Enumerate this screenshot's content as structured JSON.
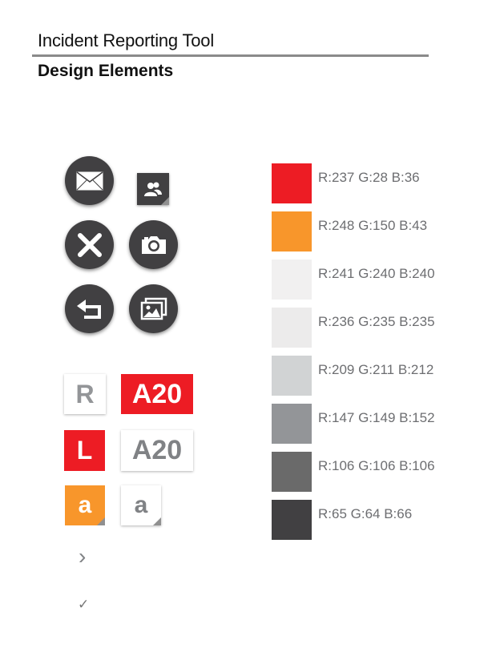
{
  "header": {
    "title": "Incident Reporting Tool",
    "subtitle": "Design Elements"
  },
  "icons": [
    {
      "name": "mail-icon",
      "shape": "circle"
    },
    {
      "name": "contacts-icon",
      "shape": "square"
    },
    {
      "name": "close-icon",
      "shape": "circle"
    },
    {
      "name": "camera-icon",
      "shape": "circle"
    },
    {
      "name": "back-icon",
      "shape": "circle"
    },
    {
      "name": "gallery-icon",
      "shape": "circle"
    }
  ],
  "tiles": {
    "r_outline": "R",
    "a20_red": "A20",
    "l_red": "L",
    "a20_outline": "A20",
    "a_orange": "a",
    "a_outline": "a"
  },
  "glyphs": {
    "chevron": "›",
    "check": "✓"
  },
  "palette": [
    {
      "label": "R:237 G:28 B:36",
      "hex": "#ED1C24"
    },
    {
      "label": "R:248 G:150 B:43",
      "hex": "#F8962B"
    },
    {
      "label": "R:241 G:240 B:240",
      "hex": "#F1F0F0"
    },
    {
      "label": "R:236 G:235 B:235",
      "hex": "#ECEBEB"
    },
    {
      "label": "R:209 G:211 B:212",
      "hex": "#D1D3D4"
    },
    {
      "label": "R:147 G:149 B:152",
      "hex": "#939598"
    },
    {
      "label": "R:106 G:106 B:106",
      "hex": "#6A6A6A"
    },
    {
      "label": "R:65 G:64 B:66",
      "hex": "#414042"
    }
  ]
}
